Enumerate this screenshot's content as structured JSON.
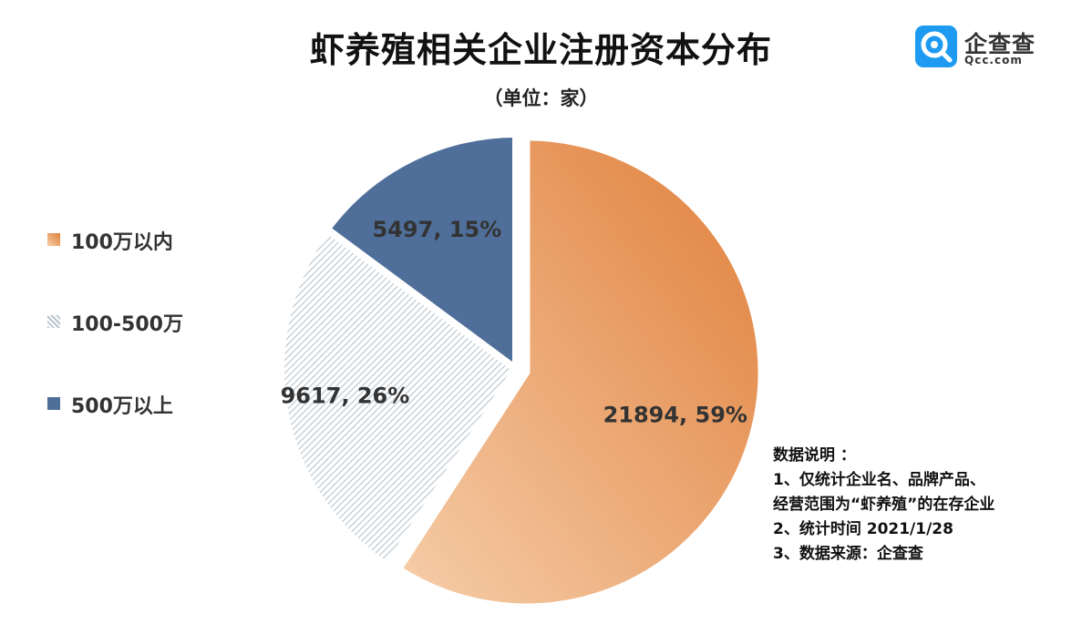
{
  "title": "虾养殖相关企业注册资本分布",
  "subtitle": "（单位：家）",
  "logo": {
    "name": "企查查",
    "domain": "Qcc.com",
    "icon": "qcc-magnifier-icon",
    "color": "#1e9bf0"
  },
  "chart_data": {
    "type": "pie",
    "title": "虾养殖相关企业注册资本分布",
    "subtitle": "（单位：家）",
    "legend_position": "left",
    "slices": [
      {
        "label": "100万以内",
        "value": 21894,
        "percent": 59,
        "data_label": "21894, 59%",
        "color": "#e8935a",
        "pattern": "gradient",
        "exploded": true
      },
      {
        "label": "100-500万",
        "value": 9617,
        "percent": 26,
        "data_label": "9617, 26%",
        "color": "#d7e0e6",
        "pattern": "diagonal-stripes",
        "exploded": false
      },
      {
        "label": "500万以上",
        "value": 5497,
        "percent": 15,
        "data_label": "5497, 15%",
        "color": "#4f6f9a",
        "pattern": "solid",
        "exploded": false
      }
    ]
  },
  "notes": {
    "heading": "数据说明 ：",
    "lines": [
      "1、仅统计企业名、品牌产品、",
      "经营范围为“虾养殖”的在存企业",
      "2、统计时间 2021/1/28",
      "3、数据来源：企查查"
    ]
  }
}
